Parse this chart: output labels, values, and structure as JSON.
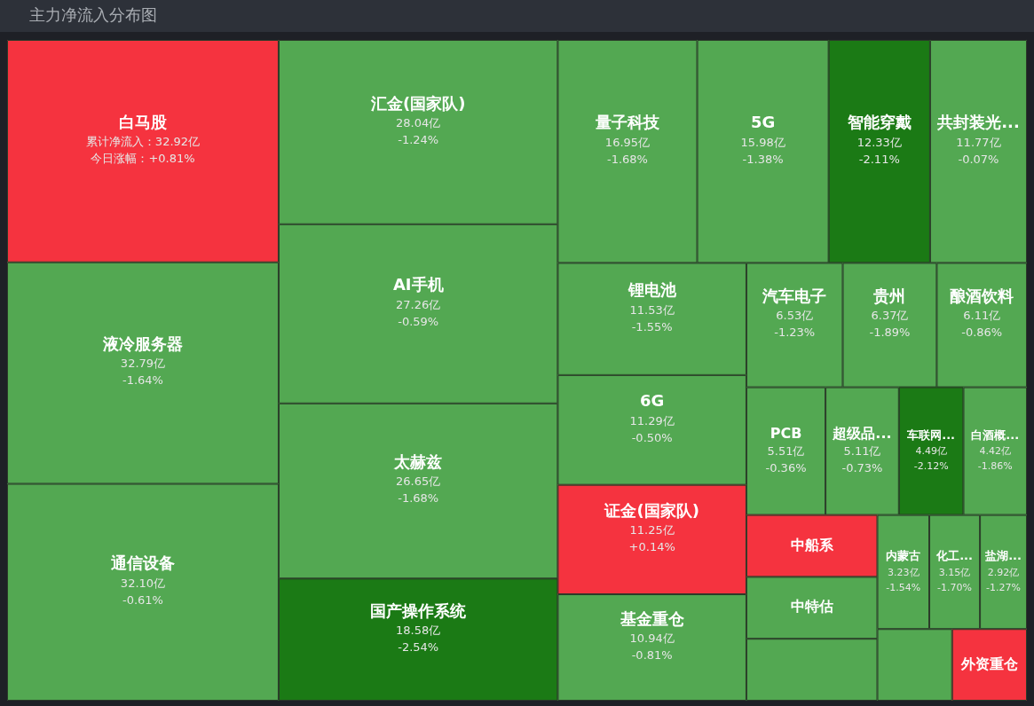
{
  "chart_data": {
    "type": "other",
    "title": "主力净流入分布图",
    "categories": [
      "白马股",
      "液冷服务器",
      "通信设备",
      "汇金(国家队)",
      "AI手机",
      "太赫兹",
      "国产操作系统",
      "量子科技",
      "5G",
      "智能穿戴",
      "共封装光...",
      "锂电池",
      "6G",
      "证金(国家队)",
      "基金重仓",
      "汽车电子",
      "贵州",
      "酿酒饮料",
      "PCB",
      "超级品...",
      "车联网...",
      "白酒概...",
      "中船系",
      "中特估",
      null,
      "内蒙古",
      "化工...",
      "盐湖...",
      null,
      "外资重仓"
    ],
    "values": [
      32.92,
      32.79,
      32.1,
      28.04,
      27.26,
      26.65,
      18.58,
      16.95,
      15.98,
      12.33,
      11.77,
      11.53,
      11.29,
      11.25,
      10.94,
      6.53,
      6.37,
      6.11,
      5.51,
      5.11,
      4.49,
      4.42,
      null,
      null,
      null,
      3.23,
      3.15,
      2.92,
      null,
      null
    ],
    "value_labels": [
      "累计净流入：32.92亿",
      "32.79亿",
      "32.10亿",
      "28.04亿",
      "27.26亿",
      "26.65亿",
      "18.58亿",
      "16.95亿",
      "15.98亿",
      "12.33亿",
      "11.77亿",
      "11.53亿",
      "11.29亿",
      "11.25亿",
      "10.94亿",
      "6.53亿",
      "6.37亿",
      "6.11亿",
      "5.51亿",
      "5.11亿",
      "4.49亿",
      "4.42亿",
      null,
      null,
      null,
      "3.23亿",
      "3.15亿",
      "2.92亿",
      null,
      null
    ],
    "colors": [
      "#f5333f",
      "#53a852",
      "#53a852",
      "#53a852",
      "#53a852",
      "#53a852",
      "#1b7a15",
      "#53a852",
      "#53a852",
      "#1b7a15",
      "#53a852",
      "#53a852",
      "#53a852",
      "#f5333f",
      "#53a852",
      "#53a852",
      "#53a852",
      "#53a852",
      "#53a852",
      "#53a852",
      "#1b7a15",
      "#53a852",
      "#f5333f",
      "#53a852",
      "#53a852",
      "#53a852",
      "#53a852",
      "#53a852",
      "#53a852",
      "#f5333f"
    ],
    "annotations": [
      {
        "text": "今日涨幅：+0.81%",
        "x": "白马股"
      },
      {
        "text": "-1.64%",
        "x": "液冷服务器"
      },
      {
        "text": "-0.61%",
        "x": "通信设备"
      },
      {
        "text": "-1.24%",
        "x": "汇金(国家队)"
      },
      {
        "text": "-0.59%",
        "x": "AI手机"
      },
      {
        "text": "-1.68%",
        "x": "太赫兹"
      },
      {
        "text": "-2.54%",
        "x": "国产操作系统"
      },
      {
        "text": "-1.68%",
        "x": "量子科技"
      },
      {
        "text": "-1.38%",
        "x": "5G"
      },
      {
        "text": "-2.11%",
        "x": "智能穿戴"
      },
      {
        "text": "-0.07%",
        "x": "共封装光..."
      },
      {
        "text": "-1.55%",
        "x": "锂电池"
      },
      {
        "text": "-0.50%",
        "x": "6G"
      },
      {
        "text": "+0.14%",
        "x": "证金(国家队)"
      },
      {
        "text": "-0.81%",
        "x": "基金重仓"
      },
      {
        "text": "-1.23%",
        "x": "汽车电子"
      },
      {
        "text": "-1.89%",
        "x": "贵州"
      },
      {
        "text": "-0.86%",
        "x": "酿酒饮料"
      },
      {
        "text": "-0.36%",
        "x": "PCB"
      },
      {
        "text": "-0.73%",
        "x": "超级品..."
      },
      {
        "text": "-2.12%",
        "x": "车联网..."
      },
      {
        "text": "-1.86%",
        "x": "白酒概..."
      },
      {
        "text": "-1.54%",
        "x": "内蒙古"
      },
      {
        "text": "-1.70%",
        "x": "化工..."
      },
      {
        "text": "-1.27%",
        "x": "盐湖..."
      }
    ]
  }
}
